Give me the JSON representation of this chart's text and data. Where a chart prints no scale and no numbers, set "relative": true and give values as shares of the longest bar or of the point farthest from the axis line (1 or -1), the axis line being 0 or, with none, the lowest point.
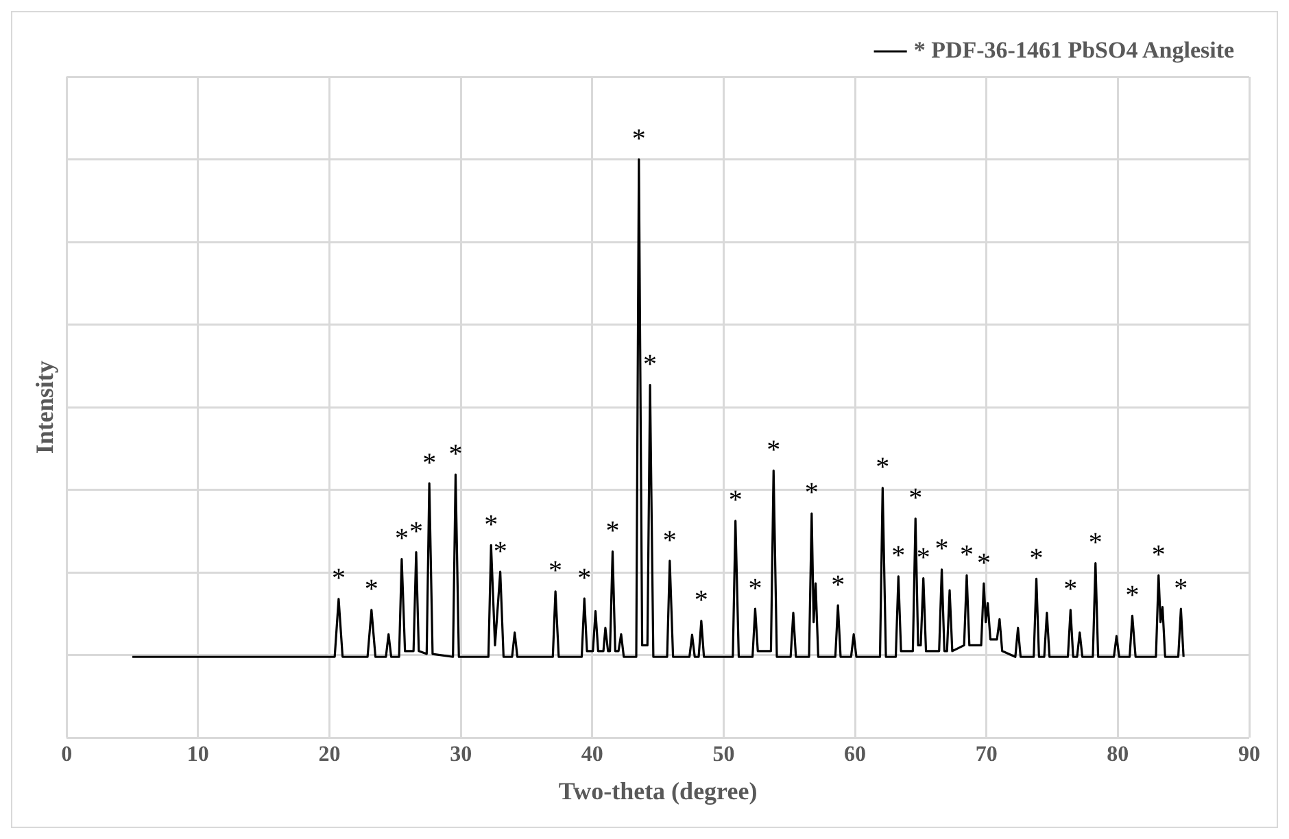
{
  "chart_data": {
    "type": "line",
    "relative": true,
    "xlabel": "Two-theta (degree)",
    "ylabel": "Intensity",
    "xlim": [
      0,
      90
    ],
    "xticks": [
      0,
      10,
      20,
      30,
      40,
      50,
      60,
      70,
      80,
      90
    ],
    "grid": true,
    "legend": "top right",
    "marker": "none",
    "line_style": "solid",
    "series": [
      {
        "name": "* PDF-36-1461 PbSO4 Anglesite",
        "color": "#000000",
        "x": [
          5,
          20.4,
          20.7,
          21.0,
          22.9,
          23.2,
          23.5,
          24.3,
          24.5,
          24.7,
          25.3,
          25.5,
          25.75,
          26.4,
          26.6,
          26.8,
          27.4,
          27.6,
          27.85,
          29.4,
          29.6,
          29.85,
          32.1,
          32.3,
          32.6,
          33.0,
          33.25,
          33.9,
          34.1,
          34.3,
          37.0,
          37.2,
          37.45,
          39.2,
          39.4,
          39.6,
          40.05,
          40.25,
          40.45,
          40.85,
          41.0,
          41.2,
          41.35,
          41.55,
          41.75,
          42.0,
          42.2,
          42.4,
          43.35,
          43.55,
          43.8,
          44.2,
          44.4,
          44.65,
          45.7,
          45.9,
          46.15,
          47.4,
          47.6,
          47.8,
          48.1,
          48.3,
          48.5,
          50.7,
          50.9,
          51.15,
          52.2,
          52.4,
          52.6,
          53.6,
          53.8,
          54.05,
          55.1,
          55.3,
          55.5,
          56.5,
          56.7,
          56.85,
          57.0,
          57.2,
          58.5,
          58.7,
          58.9,
          59.7,
          59.9,
          60.1,
          61.9,
          62.1,
          62.35,
          63.1,
          63.3,
          63.5,
          64.4,
          64.6,
          64.8,
          65.0,
          65.2,
          65.4,
          66.4,
          66.6,
          66.8,
          67.0,
          67.2,
          67.4,
          68.3,
          68.5,
          68.7,
          69.6,
          69.8,
          69.95,
          70.1,
          70.3,
          70.8,
          71.0,
          71.2,
          72.2,
          72.4,
          72.6,
          73.6,
          73.8,
          74.0,
          74.4,
          74.6,
          74.8,
          76.2,
          76.4,
          76.6,
          76.9,
          77.1,
          77.3,
          78.1,
          78.3,
          78.5,
          79.7,
          79.9,
          80.1,
          80.9,
          81.1,
          81.35,
          82.9,
          83.1,
          83.25,
          83.4,
          83.6,
          84.6,
          84.8,
          85.0
        ],
        "values": [
          0.14,
          0.14,
          0.24,
          0.14,
          0.14,
          0.221,
          0.14,
          0.14,
          0.179,
          0.14,
          0.14,
          0.309,
          0.15,
          0.15,
          0.321,
          0.15,
          0.145,
          0.44,
          0.145,
          0.14,
          0.455,
          0.14,
          0.14,
          0.333,
          0.16,
          0.287,
          0.14,
          0.14,
          0.182,
          0.14,
          0.14,
          0.253,
          0.14,
          0.14,
          0.241,
          0.15,
          0.15,
          0.219,
          0.15,
          0.15,
          0.19,
          0.15,
          0.15,
          0.322,
          0.15,
          0.15,
          0.179,
          0.14,
          0.14,
          1.0,
          0.16,
          0.16,
          0.61,
          0.14,
          0.14,
          0.306,
          0.14,
          0.14,
          0.178,
          0.14,
          0.14,
          0.202,
          0.14,
          0.14,
          0.375,
          0.14,
          0.14,
          0.223,
          0.15,
          0.15,
          0.462,
          0.14,
          0.14,
          0.216,
          0.14,
          0.14,
          0.388,
          0.2,
          0.267,
          0.14,
          0.14,
          0.229,
          0.14,
          0.14,
          0.179,
          0.14,
          0.14,
          0.432,
          0.14,
          0.14,
          0.279,
          0.15,
          0.15,
          0.379,
          0.16,
          0.16,
          0.276,
          0.15,
          0.15,
          0.291,
          0.15,
          0.15,
          0.255,
          0.15,
          0.16,
          0.281,
          0.16,
          0.16,
          0.267,
          0.2,
          0.233,
          0.17,
          0.17,
          0.205,
          0.15,
          0.14,
          0.19,
          0.14,
          0.14,
          0.275,
          0.14,
          0.14,
          0.216,
          0.14,
          0.14,
          0.221,
          0.14,
          0.14,
          0.182,
          0.14,
          0.14,
          0.302,
          0.14,
          0.14,
          0.176,
          0.14,
          0.14,
          0.211,
          0.14,
          0.14,
          0.281,
          0.2,
          0.226,
          0.14,
          0.14,
          0.223,
          0.14
        ]
      }
    ],
    "annotations": [
      {
        "text": "*",
        "x": 20.7,
        "y": 0.24
      },
      {
        "text": "*",
        "x": 23.2,
        "y": 0.221
      },
      {
        "text": "*",
        "x": 25.5,
        "y": 0.309
      },
      {
        "text": "*",
        "x": 26.6,
        "y": 0.321
      },
      {
        "text": "*",
        "x": 27.6,
        "y": 0.44
      },
      {
        "text": "*",
        "x": 29.6,
        "y": 0.455
      },
      {
        "text": "*",
        "x": 32.3,
        "y": 0.333
      },
      {
        "text": "*",
        "x": 33.0,
        "y": 0.287
      },
      {
        "text": "*",
        "x": 37.2,
        "y": 0.253
      },
      {
        "text": "*",
        "x": 39.4,
        "y": 0.241
      },
      {
        "text": "*",
        "x": 41.55,
        "y": 0.322
      },
      {
        "text": "*",
        "x": 43.55,
        "y": 1.0
      },
      {
        "text": "*",
        "x": 44.4,
        "y": 0.61
      },
      {
        "text": "*",
        "x": 45.9,
        "y": 0.306
      },
      {
        "text": "*",
        "x": 48.3,
        "y": 0.202
      },
      {
        "text": "*",
        "x": 50.9,
        "y": 0.375
      },
      {
        "text": "*",
        "x": 52.4,
        "y": 0.223
      },
      {
        "text": "*",
        "x": 53.8,
        "y": 0.462
      },
      {
        "text": "*",
        "x": 56.7,
        "y": 0.388
      },
      {
        "text": "*",
        "x": 58.7,
        "y": 0.229
      },
      {
        "text": "*",
        "x": 62.1,
        "y": 0.432
      },
      {
        "text": "*",
        "x": 63.3,
        "y": 0.279
      },
      {
        "text": "*",
        "x": 64.6,
        "y": 0.379
      },
      {
        "text": "*",
        "x": 65.2,
        "y": 0.276
      },
      {
        "text": "*",
        "x": 66.6,
        "y": 0.291
      },
      {
        "text": "*",
        "x": 68.5,
        "y": 0.281
      },
      {
        "text": "*",
        "x": 69.8,
        "y": 0.267
      },
      {
        "text": "*",
        "x": 73.8,
        "y": 0.275
      },
      {
        "text": "*",
        "x": 76.4,
        "y": 0.221
      },
      {
        "text": "*",
        "x": 78.3,
        "y": 0.302
      },
      {
        "text": "*",
        "x": 81.1,
        "y": 0.211
      },
      {
        "text": "*",
        "x": 83.1,
        "y": 0.281
      },
      {
        "text": "*",
        "x": 84.8,
        "y": 0.223
      }
    ]
  }
}
